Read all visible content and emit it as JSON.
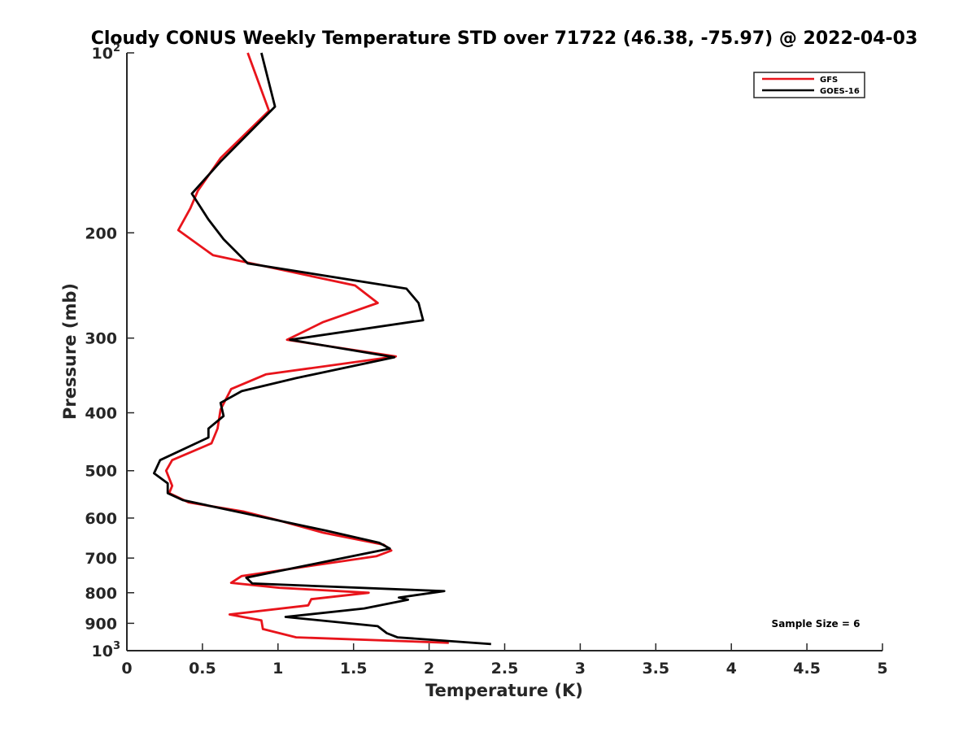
{
  "chart_data": {
    "type": "line",
    "title": "Cloudy CONUS Weekly Temperature STD over 71722 (46.38, -75.97) @ 2022-04-03",
    "xlabel": "Temperature (K)",
    "ylabel": "Pressure (mb)",
    "xlim": [
      0,
      5
    ],
    "ylim": [
      100,
      1000
    ],
    "yscale": "log",
    "y_reversed": true,
    "grid": false,
    "legend_position": "top-right",
    "xticks": [
      {
        "value": 0,
        "label": "0"
      },
      {
        "value": 0.5,
        "label": "0.5"
      },
      {
        "value": 1,
        "label": "1"
      },
      {
        "value": 1.5,
        "label": "1.5"
      },
      {
        "value": 2,
        "label": "2"
      },
      {
        "value": 2.5,
        "label": "2.5"
      },
      {
        "value": 3,
        "label": "3"
      },
      {
        "value": 3.5,
        "label": "3.5"
      },
      {
        "value": 4,
        "label": "4"
      },
      {
        "value": 4.5,
        "label": "4.5"
      },
      {
        "value": 5,
        "label": "5"
      }
    ],
    "yticks": [
      {
        "value": 100,
        "base": "10",
        "exp": "2"
      },
      {
        "value": 200,
        "label": "200"
      },
      {
        "value": 300,
        "label": "300"
      },
      {
        "value": 400,
        "label": "400"
      },
      {
        "value": 500,
        "label": "500"
      },
      {
        "value": 600,
        "label": "600"
      },
      {
        "value": 700,
        "label": "700"
      },
      {
        "value": 800,
        "label": "800"
      },
      {
        "value": 900,
        "label": "900"
      },
      {
        "value": 1000,
        "base": "10",
        "exp": "3"
      }
    ],
    "annotation": "Sample Size = 6",
    "series": [
      {
        "name": "GFS",
        "color": "#e8141b",
        "points": [
          [
            0.8,
            100
          ],
          [
            0.94,
            125
          ],
          [
            0.62,
            150
          ],
          [
            0.47,
            170
          ],
          [
            0.42,
            182
          ],
          [
            0.34,
            198
          ],
          [
            0.57,
            218
          ],
          [
            1.51,
            245
          ],
          [
            1.66,
            262
          ],
          [
            1.3,
            282
          ],
          [
            1.06,
            302
          ],
          [
            1.78,
            322
          ],
          [
            0.92,
            345
          ],
          [
            0.69,
            365
          ],
          [
            0.62,
            395
          ],
          [
            0.6,
            425
          ],
          [
            0.56,
            450
          ],
          [
            0.3,
            480
          ],
          [
            0.26,
            500
          ],
          [
            0.3,
            530
          ],
          [
            0.28,
            545
          ],
          [
            0.41,
            565
          ],
          [
            0.77,
            585
          ],
          [
            1.0,
            605
          ],
          [
            1.3,
            635
          ],
          [
            1.7,
            665
          ],
          [
            1.75,
            680
          ],
          [
            1.65,
            695
          ],
          [
            0.76,
            750
          ],
          [
            0.69,
            770
          ],
          [
            1.01,
            785
          ],
          [
            1.6,
            800
          ],
          [
            1.22,
            820
          ],
          [
            1.2,
            840
          ],
          [
            0.68,
            870
          ],
          [
            0.89,
            890
          ],
          [
            0.9,
            920
          ],
          [
            1.12,
            950
          ],
          [
            2.13,
            970
          ]
        ]
      },
      {
        "name": "GOES-16",
        "color": "#000000",
        "points": [
          [
            0.89,
            100
          ],
          [
            0.98,
            123
          ],
          [
            0.62,
            152
          ],
          [
            0.43,
            172
          ],
          [
            0.54,
            190
          ],
          [
            0.64,
            205
          ],
          [
            0.8,
            225
          ],
          [
            1.85,
            248
          ],
          [
            1.93,
            262
          ],
          [
            1.96,
            280
          ],
          [
            1.08,
            302
          ],
          [
            1.77,
            323
          ],
          [
            1.12,
            350
          ],
          [
            0.76,
            368
          ],
          [
            0.62,
            385
          ],
          [
            0.64,
            405
          ],
          [
            0.54,
            425
          ],
          [
            0.54,
            440
          ],
          [
            0.22,
            480
          ],
          [
            0.18,
            505
          ],
          [
            0.27,
            525
          ],
          [
            0.27,
            545
          ],
          [
            0.37,
            560
          ],
          [
            1.32,
            630
          ],
          [
            1.67,
            660
          ],
          [
            1.74,
            675
          ],
          [
            1.55,
            690
          ],
          [
            0.79,
            755
          ],
          [
            0.83,
            772
          ],
          [
            2.1,
            795
          ],
          [
            1.8,
            815
          ],
          [
            1.86,
            822
          ],
          [
            1.57,
            850
          ],
          [
            1.05,
            878
          ],
          [
            1.66,
            910
          ],
          [
            1.72,
            935
          ],
          [
            1.79,
            950
          ],
          [
            2.41,
            975
          ]
        ]
      }
    ]
  }
}
